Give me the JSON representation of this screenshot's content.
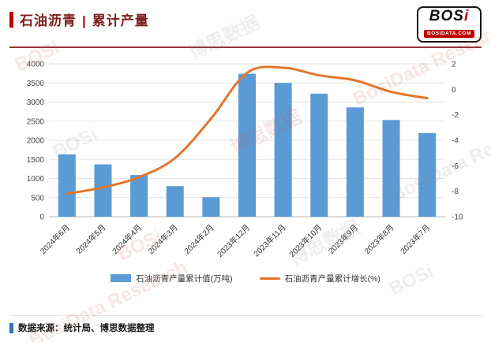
{
  "header": {
    "title_left": "石油沥青",
    "title_sep": "|",
    "title_right": "累计产量"
  },
  "logo": {
    "main_a": "BOS",
    "main_b": "i",
    "sub": "BOSIDATA.COM"
  },
  "chart_data": {
    "type": "bar+line",
    "categories": [
      "2024年6月",
      "2024年5月",
      "2024年4月",
      "2024年3月",
      "2024年2月",
      "2023年12月",
      "2023年11月",
      "2023年10月",
      "2023年9月",
      "2023年8月",
      "2023年7月"
    ],
    "series": [
      {
        "name": "石油沥青产量累计值(万吨)",
        "type": "bar",
        "axis": "left",
        "color": "#5b9bd5",
        "values": [
          1630,
          1370,
          1090,
          800,
          510,
          3740,
          3500,
          3220,
          2860,
          2530,
          2190
        ]
      },
      {
        "name": "石油沥青产量累计增长(%)",
        "type": "line",
        "axis": "right",
        "color": "#e2762c",
        "values": [
          -8.2,
          -7.7,
          -6.9,
          -5.4,
          -2.3,
          1.3,
          1.7,
          1.1,
          0.7,
          -0.2,
          -0.7
        ]
      }
    ],
    "left_axis": {
      "min": 0,
      "max": 4000,
      "step": 500
    },
    "right_axis": {
      "min": -10,
      "max": 2,
      "step": 2
    },
    "grid": true,
    "legend_position": "bottom"
  },
  "footer": {
    "source": "数据来源：统计局、博思数据整理"
  },
  "watermarks": [
    "BOSi",
    "博思数据",
    "BosiData Research"
  ]
}
